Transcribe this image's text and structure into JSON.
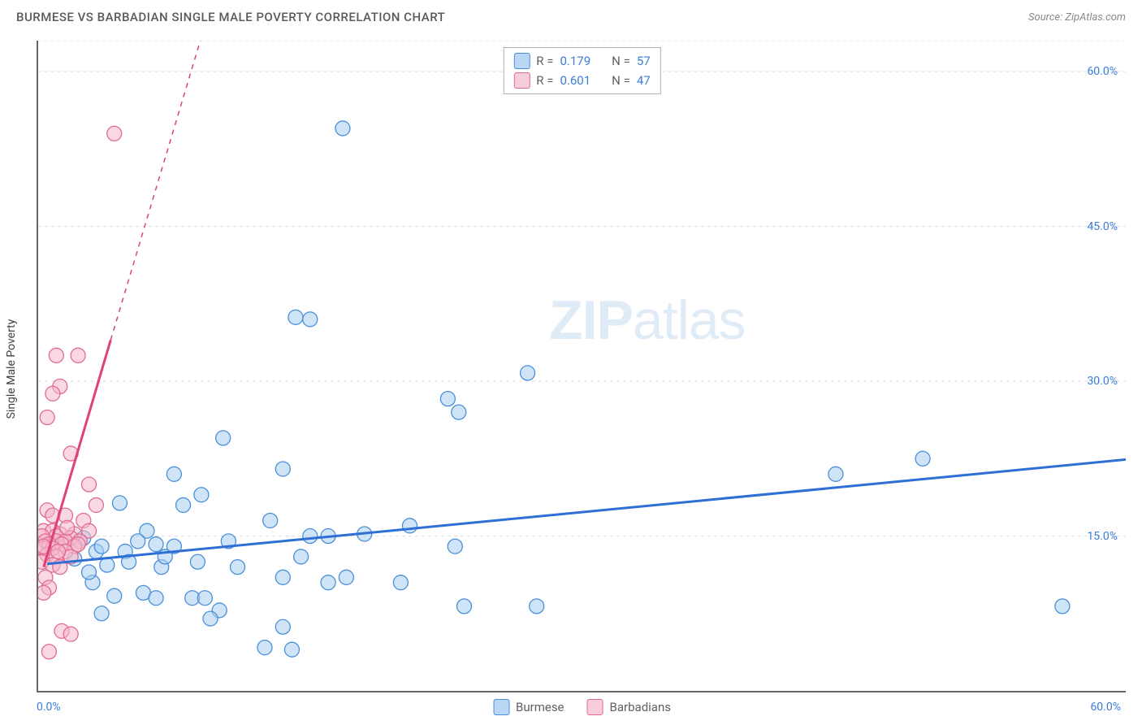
{
  "title": "BURMESE VS BARBADIAN SINGLE MALE POVERTY CORRELATION CHART",
  "source": "Source: ZipAtlas.com",
  "ylabel": "Single Male Poverty",
  "watermark_bold": "ZIP",
  "watermark_rest": "atlas",
  "chart": {
    "type": "scatter",
    "xlim": [
      0,
      60
    ],
    "ylim": [
      0,
      63
    ],
    "xtick_positions": [
      0,
      7.5,
      15,
      22.5,
      30,
      37.5,
      45,
      52.5,
      60
    ],
    "xtick_labels": {
      "0": "0.0%",
      "60": "60.0%"
    },
    "ytick_positions": [
      15,
      30,
      45,
      60,
      63
    ],
    "ytick_labels": {
      "15": "15.0%",
      "30": "30.0%",
      "45": "45.0%",
      "60": "60.0%"
    },
    "grid_color": "#dddddd",
    "tick_label_color": "#3b7dd8",
    "axis_color": "#666666",
    "series": [
      {
        "name": "Burmese",
        "R": "0.179",
        "N": "57",
        "fill": "#a8cdf0",
        "stroke": "#4a90d9",
        "fill_opacity": 0.55,
        "marker_r": 9,
        "swatch_fill": "#b9d7f4",
        "swatch_border": "#4a90d9",
        "trend": {
          "x1": 0.5,
          "y1": 12.3,
          "x2": 60.5,
          "y2": 22.5,
          "color": "#2e6fd6",
          "width": 3,
          "dash_after_x": null
        },
        "points": [
          [
            16.8,
            54.5
          ],
          [
            14.2,
            36.2
          ],
          [
            15.0,
            36.0
          ],
          [
            27.0,
            30.8
          ],
          [
            22.6,
            28.3
          ],
          [
            23.2,
            27.0
          ],
          [
            10.2,
            24.5
          ],
          [
            48.8,
            22.5
          ],
          [
            13.5,
            21.5
          ],
          [
            44.0,
            21.0
          ],
          [
            7.5,
            21.0
          ],
          [
            9.0,
            19.0
          ],
          [
            4.5,
            18.2
          ],
          [
            8.0,
            18.0
          ],
          [
            12.8,
            16.5
          ],
          [
            20.5,
            16.0
          ],
          [
            6.0,
            15.5
          ],
          [
            18.0,
            15.2
          ],
          [
            16.0,
            15.0
          ],
          [
            15.0,
            15.0
          ],
          [
            2.5,
            14.8
          ],
          [
            5.5,
            14.5
          ],
          [
            10.5,
            14.5
          ],
          [
            6.5,
            14.2
          ],
          [
            7.5,
            14.0
          ],
          [
            23.0,
            14.0
          ],
          [
            3.2,
            13.5
          ],
          [
            4.8,
            13.5
          ],
          [
            14.5,
            13.0
          ],
          [
            2.0,
            12.8
          ],
          [
            5.0,
            12.5
          ],
          [
            8.8,
            12.5
          ],
          [
            3.8,
            12.2
          ],
          [
            6.8,
            12.0
          ],
          [
            11.0,
            12.0
          ],
          [
            13.5,
            11.0
          ],
          [
            17.0,
            11.0
          ],
          [
            3.0,
            10.5
          ],
          [
            16.0,
            10.5
          ],
          [
            20.0,
            10.5
          ],
          [
            5.8,
            9.5
          ],
          [
            6.5,
            9.0
          ],
          [
            8.5,
            9.0
          ],
          [
            9.2,
            9.0
          ],
          [
            23.5,
            8.2
          ],
          [
            27.5,
            8.2
          ],
          [
            56.5,
            8.2
          ],
          [
            10.0,
            7.8
          ],
          [
            3.5,
            7.5
          ],
          [
            9.5,
            7.0
          ],
          [
            13.5,
            6.2
          ],
          [
            14.0,
            4.0
          ],
          [
            12.5,
            4.2
          ],
          [
            4.2,
            9.2
          ],
          [
            2.8,
            11.5
          ],
          [
            3.5,
            14.0
          ],
          [
            7.0,
            13.0
          ]
        ]
      },
      {
        "name": "Barbadians",
        "R": "0.601",
        "N": "47",
        "fill": "#f4b8ca",
        "stroke": "#e16b94",
        "fill_opacity": 0.55,
        "marker_r": 9,
        "swatch_fill": "#f7cddb",
        "swatch_border": "#e16b94",
        "trend": {
          "x1": 0.3,
          "y1": 12.0,
          "x2": 4.0,
          "y2": 34.0,
          "extend_x2": 11.5,
          "extend_y2": 78,
          "color": "#e04177",
          "width": 3,
          "dash_after_x": 4.0
        },
        "points": [
          [
            4.2,
            54.0
          ],
          [
            1.0,
            32.5
          ],
          [
            2.2,
            32.5
          ],
          [
            1.2,
            29.5
          ],
          [
            0.8,
            28.8
          ],
          [
            0.5,
            26.5
          ],
          [
            1.8,
            23.0
          ],
          [
            2.8,
            20.0
          ],
          [
            3.2,
            18.0
          ],
          [
            0.5,
            17.5
          ],
          [
            0.8,
            17.0
          ],
          [
            1.5,
            17.0
          ],
          [
            2.5,
            16.5
          ],
          [
            0.3,
            15.5
          ],
          [
            0.8,
            15.5
          ],
          [
            1.2,
            15.2
          ],
          [
            2.0,
            15.2
          ],
          [
            2.8,
            15.5
          ],
          [
            0.2,
            15.0
          ],
          [
            1.0,
            15.0
          ],
          [
            1.8,
            14.8
          ],
          [
            0.4,
            14.5
          ],
          [
            1.0,
            14.5
          ],
          [
            1.5,
            14.5
          ],
          [
            2.3,
            14.5
          ],
          [
            0.6,
            14.2
          ],
          [
            1.3,
            14.2
          ],
          [
            2.0,
            14.0
          ],
          [
            0.3,
            13.8
          ],
          [
            0.8,
            13.8
          ],
          [
            1.5,
            13.5
          ],
          [
            0.5,
            13.2
          ],
          [
            1.0,
            13.0
          ],
          [
            1.8,
            13.0
          ],
          [
            0.2,
            12.5
          ],
          [
            0.8,
            12.2
          ],
          [
            1.2,
            12.0
          ],
          [
            0.4,
            11.0
          ],
          [
            0.6,
            10.0
          ],
          [
            0.3,
            9.5
          ],
          [
            1.3,
            5.8
          ],
          [
            1.8,
            5.5
          ],
          [
            0.6,
            3.8
          ],
          [
            0.3,
            14.0
          ],
          [
            1.6,
            15.8
          ],
          [
            2.2,
            14.2
          ],
          [
            1.1,
            13.5
          ]
        ]
      }
    ]
  },
  "legend_top_label_R": "R  =",
  "legend_top_label_N": "N  =",
  "legend_bottom": [
    "Burmese",
    "Barbadians"
  ]
}
